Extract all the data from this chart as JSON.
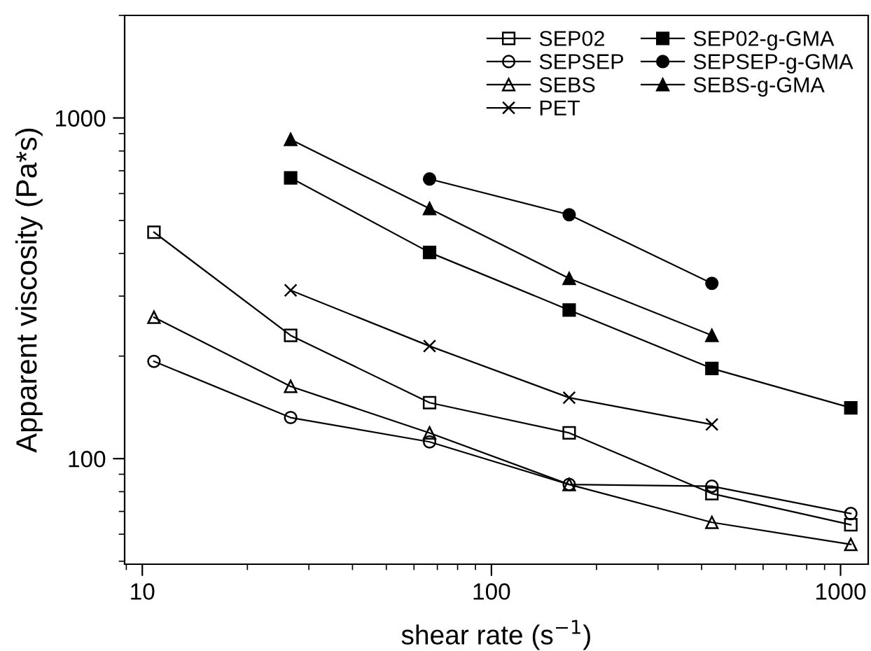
{
  "chart_data": {
    "type": "line",
    "xlabel": "shear rate (s$^{−1}$)",
    "ylabel": "Apparent viscosity (Pa*s)",
    "log": "xy",
    "xlim": [
      8.9,
      1200
    ],
    "xticks": [
      10,
      100,
      1000
    ],
    "ylim": [
      49,
      2000
    ],
    "yticks": [
      100,
      1000
    ],
    "grid": false,
    "legend": "top right",
    "line_style": "solid",
    "series": [
      {
        "name": "SEP02",
        "color": "#000000",
        "marker": "square",
        "x": [
          10.8,
          26.6,
          66.5,
          167,
          428,
          1070
        ],
        "values": [
          462,
          230,
          146,
          119,
          79,
          64
        ]
      },
      {
        "name": "SEPSEP",
        "color": "#000000",
        "marker": "circle",
        "x": [
          10.8,
          26.6,
          66.5,
          167,
          428,
          1070
        ],
        "values": [
          193,
          132,
          112,
          84,
          83,
          69
        ]
      },
      {
        "name": "SEBS",
        "color": "#000000",
        "marker": "triangle",
        "x": [
          10.8,
          26.6,
          66.5,
          167,
          428,
          1070
        ],
        "values": [
          260,
          163,
          119,
          84,
          65,
          56
        ]
      },
      {
        "name": "PET",
        "color": "#000000",
        "marker": "cross",
        "x": [
          26.6,
          66.5,
          167,
          428
        ],
        "values": [
          312,
          214,
          151,
          126
        ]
      },
      {
        "name": "SEP02-g-GMA",
        "color": "#000000",
        "marker": "square",
        "x": [
          26.6,
          66.5,
          167,
          428,
          1070
        ],
        "values": [
          667,
          403,
          273,
          184,
          141
        ]
      },
      {
        "name": "SEPSEP-g-GMA",
        "color": "#000000",
        "marker": "circle",
        "x": [
          66.5,
          167,
          428
        ],
        "values": [
          662,
          520,
          327
        ]
      },
      {
        "name": "SEBS-g-GMA",
        "color": "#000000",
        "marker": "triangle",
        "x": [
          26.6,
          66.5,
          167,
          428
        ],
        "values": [
          865,
          542,
          338,
          230
        ]
      }
    ]
  }
}
